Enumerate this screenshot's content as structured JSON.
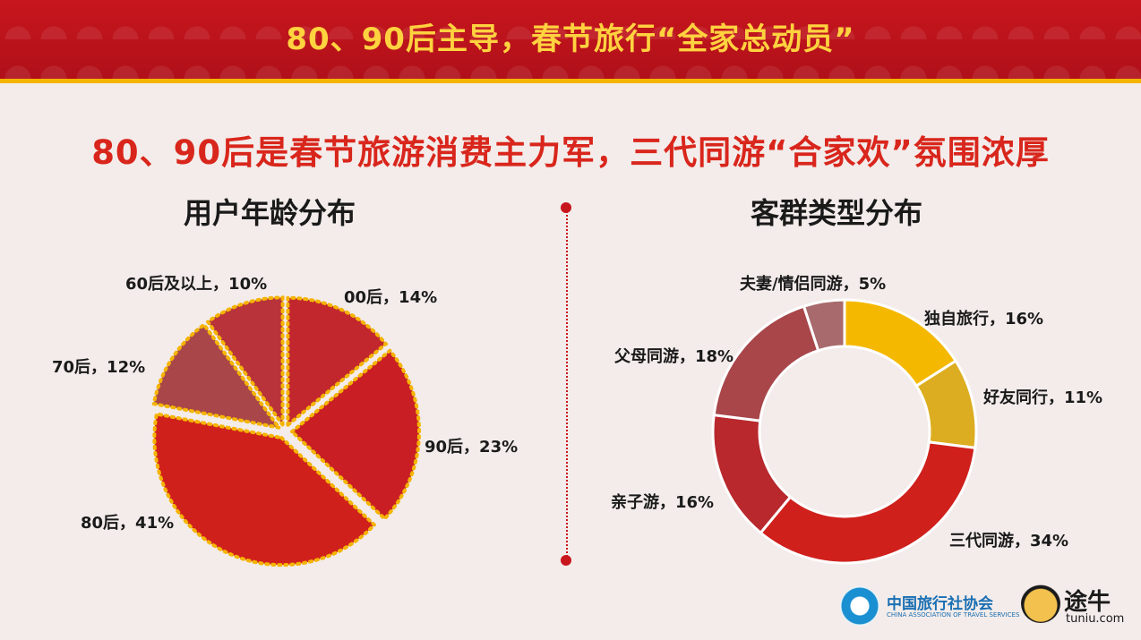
{
  "header": {
    "title": "80、90后主导，春节旅行“全家总动员”"
  },
  "headline": "80、90后是春节旅游消费主力军，三代同游“合家欢”氛围浓厚",
  "colors": {
    "red": "#c8161d",
    "gold": "#f5b400",
    "headline": "#d9261c"
  },
  "chart_data": [
    {
      "type": "pie",
      "title": "用户年龄分布",
      "categories": [
        "00后",
        "90后",
        "80后",
        "70后",
        "60后及以上"
      ],
      "values": [
        14,
        23,
        41,
        12,
        10
      ],
      "labels": [
        "00后，14%",
        "90后，23%",
        "80后，41%",
        "70后，12%",
        "60后及以上，10%"
      ],
      "colors": [
        "#c2272d",
        "#c81e24",
        "#d0201c",
        "#a8464a",
        "#b8333a"
      ]
    },
    {
      "type": "pie",
      "title": "客群类型分布",
      "categories": [
        "独自旅行",
        "好友同行",
        "三代同游",
        "亲子游",
        "父母同游",
        "夫妻/情侣同游"
      ],
      "values": [
        16,
        11,
        34,
        16,
        18,
        5
      ],
      "labels": [
        "独自旅行，16%",
        "好友同行，11%",
        "三代同游，34%",
        "亲子游，16%",
        "父母同游，18%",
        "夫妻/情侣同游，5%"
      ],
      "colors": [
        "#f5b800",
        "#dcad20",
        "#d0201c",
        "#b8282d",
        "#a8464a",
        "#a86a6c"
      ]
    }
  ],
  "logos": {
    "ctas_cn": "中国旅行社协会",
    "ctas_en": "CHINA ASSOCIATION OF TRAVEL SERVICES",
    "tuniu_cn": "途牛",
    "tuniu_en": "tuniu.com"
  }
}
